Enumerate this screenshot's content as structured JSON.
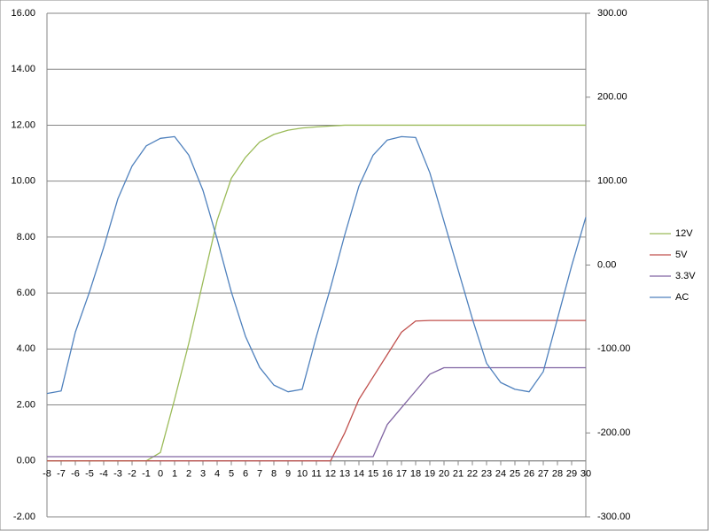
{
  "chart_data": {
    "type": "line",
    "x": [
      -8,
      -7,
      -6,
      -5,
      -4,
      -3,
      -2,
      -1,
      0,
      1,
      2,
      3,
      4,
      5,
      6,
      7,
      8,
      9,
      10,
      11,
      12,
      13,
      14,
      15,
      16,
      17,
      18,
      19,
      20,
      21,
      22,
      23,
      24,
      25,
      26,
      27,
      28,
      29,
      30
    ],
    "xlim": [
      -8,
      30
    ],
    "xticks": [
      -8,
      -7,
      -6,
      -5,
      -4,
      -3,
      -2,
      -1,
      0,
      1,
      2,
      3,
      4,
      5,
      6,
      7,
      8,
      9,
      10,
      11,
      12,
      13,
      14,
      15,
      16,
      17,
      18,
      19,
      20,
      21,
      22,
      23,
      24,
      25,
      26,
      27,
      28,
      29,
      30
    ],
    "ylim": [
      -2,
      16
    ],
    "yticks": [
      {
        "value": -2,
        "label": "-2.00"
      },
      {
        "value": 0,
        "label": "0.00"
      },
      {
        "value": 2,
        "label": "2.00"
      },
      {
        "value": 4,
        "label": "4.00"
      },
      {
        "value": 6,
        "label": "6.00"
      },
      {
        "value": 8,
        "label": "8.00"
      },
      {
        "value": 10,
        "label": "10.00"
      },
      {
        "value": 12,
        "label": "12.00"
      },
      {
        "value": 14,
        "label": "14.00"
      },
      {
        "value": 16,
        "label": "16.00"
      }
    ],
    "y2lim": [
      -300,
      300
    ],
    "y2ticks": [
      {
        "value": -300,
        "label": "-300.00"
      },
      {
        "value": -200,
        "label": "-200.00"
      },
      {
        "value": -100,
        "label": "-100.00"
      },
      {
        "value": 0,
        "label": "0.00"
      },
      {
        "value": 100,
        "label": "100.00"
      },
      {
        "value": 200,
        "label": "200.00"
      },
      {
        "value": 300,
        "label": "300.00"
      }
    ],
    "grid": true,
    "legend": "right",
    "series": [
      {
        "name": "12V",
        "color": "#9bbb59",
        "values": [
          0,
          0,
          0,
          0,
          0,
          0,
          0,
          0,
          0.3,
          2.2,
          4.2,
          6.4,
          8.6,
          10.1,
          10.85,
          11.4,
          11.67,
          11.82,
          11.9,
          11.94,
          11.97,
          12,
          12,
          12,
          12,
          12,
          12,
          12,
          12,
          12,
          12,
          12,
          12,
          12,
          12,
          12,
          12,
          12,
          12
        ]
      },
      {
        "name": "5V",
        "color": "#c0504d",
        "values": [
          0,
          0,
          0,
          0,
          0,
          0,
          0,
          0,
          0,
          0,
          0,
          0,
          0,
          0,
          0,
          0,
          0,
          0,
          0,
          0,
          0,
          1.0,
          2.2,
          3.0,
          3.8,
          4.6,
          5.0,
          5.02,
          5.02,
          5.02,
          5.02,
          5.02,
          5.02,
          5.02,
          5.02,
          5.02,
          5.02,
          5.02,
          5.02
        ]
      },
      {
        "name": "3.3V",
        "color": "#8064a2",
        "values": [
          0.15,
          0.15,
          0.15,
          0.15,
          0.15,
          0.15,
          0.15,
          0.15,
          0.15,
          0.15,
          0.15,
          0.15,
          0.15,
          0.15,
          0.15,
          0.15,
          0.15,
          0.15,
          0.15,
          0.15,
          0.15,
          0.15,
          0.15,
          0.15,
          1.3,
          1.9,
          2.5,
          3.1,
          3.33,
          3.33,
          3.33,
          3.33,
          3.33,
          3.33,
          3.33,
          3.33,
          3.33,
          3.33,
          3.33
        ]
      },
      {
        "name": "AC",
        "color": "#4f81bd",
        "axis": "y2",
        "values": [
          -153,
          -150,
          -80,
          -32,
          21,
          79,
          118,
          142,
          151,
          153,
          131,
          89,
          31,
          -32,
          -85,
          -122,
          -143,
          -151,
          -148,
          -85,
          -27,
          36,
          94,
          131,
          149,
          153,
          152,
          110,
          52,
          -6,
          -64,
          -117,
          -140,
          -148,
          -151,
          -127,
          -64,
          -1,
          57
        ]
      }
    ]
  }
}
